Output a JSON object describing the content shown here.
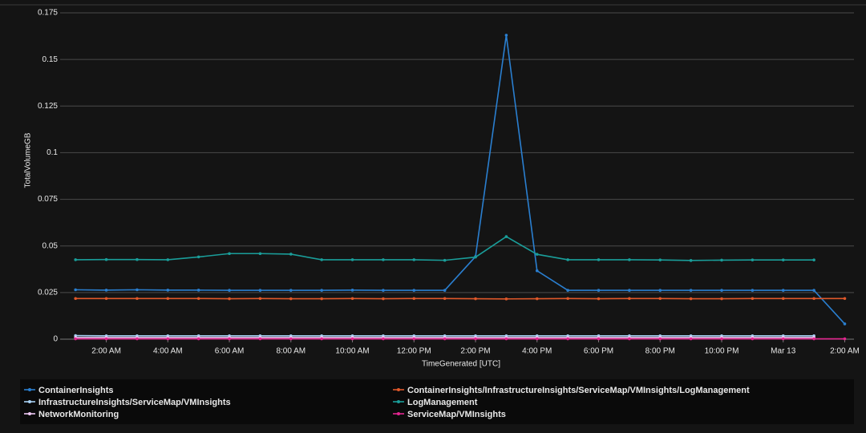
{
  "chart_data": {
    "type": "line",
    "y_label": "TotalVolumeGB",
    "x_label": "TimeGenerated [UTC]",
    "x": [
      1,
      2,
      3,
      4,
      5,
      6,
      7,
      8,
      9,
      10,
      11,
      12,
      13,
      14,
      15,
      16,
      17,
      18,
      19,
      20,
      21,
      22,
      23,
      24,
      25,
      26
    ],
    "xlim": [
      0.5,
      26.3
    ],
    "xticks": [
      {
        "value": 2,
        "label": "2:00 AM"
      },
      {
        "value": 4,
        "label": "4:00 AM"
      },
      {
        "value": 6,
        "label": "6:00 AM"
      },
      {
        "value": 8,
        "label": "8:00 AM"
      },
      {
        "value": 10,
        "label": "10:00 AM"
      },
      {
        "value": 12,
        "label": "12:00 PM"
      },
      {
        "value": 14,
        "label": "2:00 PM"
      },
      {
        "value": 16,
        "label": "4:00 PM"
      },
      {
        "value": 18,
        "label": "6:00 PM"
      },
      {
        "value": 20,
        "label": "8:00 PM"
      },
      {
        "value": 22,
        "label": "10:00 PM"
      },
      {
        "value": 24,
        "label": "Mar 13"
      },
      {
        "value": 26,
        "label": "2:00 AM"
      }
    ],
    "ylim": [
      0,
      0.175
    ],
    "yticks": [
      0,
      0.025,
      0.05,
      0.075,
      0.1,
      0.125,
      0.15,
      0.175
    ],
    "grid": true,
    "legend": "bottom",
    "series": [
      {
        "name": "ContainerInsights",
        "color": "#2a7fd0",
        "values": [
          0.0265,
          0.0263,
          0.0265,
          0.0263,
          0.0263,
          0.0262,
          0.0262,
          0.0262,
          0.0262,
          0.0263,
          0.0262,
          0.0262,
          0.0262,
          0.0443,
          0.163,
          0.0367,
          0.0262,
          0.0262,
          0.0262,
          0.0262,
          0.0262,
          0.0262,
          0.0262,
          0.0262,
          0.0262,
          0.0082
        ]
      },
      {
        "name": "ContainerInsights/InfrastructureInsights/ServiceMap/VMInsights/LogManagement",
        "color": "#e0582a",
        "values": [
          0.0218,
          0.0218,
          0.0218,
          0.0218,
          0.0218,
          0.0217,
          0.0218,
          0.0217,
          0.0217,
          0.0218,
          0.0217,
          0.0218,
          0.0218,
          0.0217,
          0.0216,
          0.0217,
          0.0218,
          0.0217,
          0.0218,
          0.0218,
          0.0217,
          0.0217,
          0.0218,
          0.0218,
          0.0218,
          0.0218
        ]
      },
      {
        "name": "InfrastructureInsights/ServiceMap/VMInsights",
        "color": "#a9d2f5",
        "values": [
          0.0019,
          0.0018,
          0.0018,
          0.0018,
          0.0018,
          0.0018,
          0.0018,
          0.0018,
          0.0018,
          0.0018,
          0.0018,
          0.0018,
          0.0018,
          0.0018,
          0.0018,
          0.0018,
          0.0018,
          0.0018,
          0.0018,
          0.0018,
          0.0018,
          0.0018,
          0.0018,
          0.0018,
          0.0018,
          null
        ]
      },
      {
        "name": "LogManagement",
        "color": "#1a9e9a",
        "values": [
          0.0426,
          0.0427,
          0.0427,
          0.0426,
          0.0441,
          0.0459,
          0.0459,
          0.0456,
          0.0426,
          0.0426,
          0.0426,
          0.0426,
          0.0423,
          0.044,
          0.055,
          0.0455,
          0.0426,
          0.0426,
          0.0426,
          0.0425,
          0.0422,
          0.0424,
          0.0425,
          0.0425,
          0.0425,
          null
        ]
      },
      {
        "name": "NetworkMonitoring",
        "color": "#efc8f5",
        "values": [
          0.0009,
          0.0009,
          0.0009,
          0.0009,
          0.0009,
          0.0009,
          0.0009,
          0.0009,
          0.0009,
          0.0009,
          0.0009,
          0.0009,
          0.0009,
          0.0009,
          0.0009,
          0.0009,
          0.0009,
          0.0009,
          0.0009,
          0.0009,
          0.0009,
          0.0009,
          0.0009,
          0.0009,
          0.0009,
          null
        ]
      },
      {
        "name": "ServiceMap/VMInsights",
        "color": "#e3258f",
        "values": [
          0.0002,
          0.0002,
          0.0002,
          0.0002,
          0.0002,
          0.0002,
          0.0002,
          0.0002,
          0.0002,
          0.0002,
          0.0002,
          0.0002,
          0.0002,
          0.0002,
          0.0002,
          0.0002,
          0.0002,
          0.0002,
          0.0002,
          0.0002,
          0.0002,
          0.0002,
          0.0002,
          0.0002,
          0.0002,
          0.0002
        ]
      }
    ]
  }
}
